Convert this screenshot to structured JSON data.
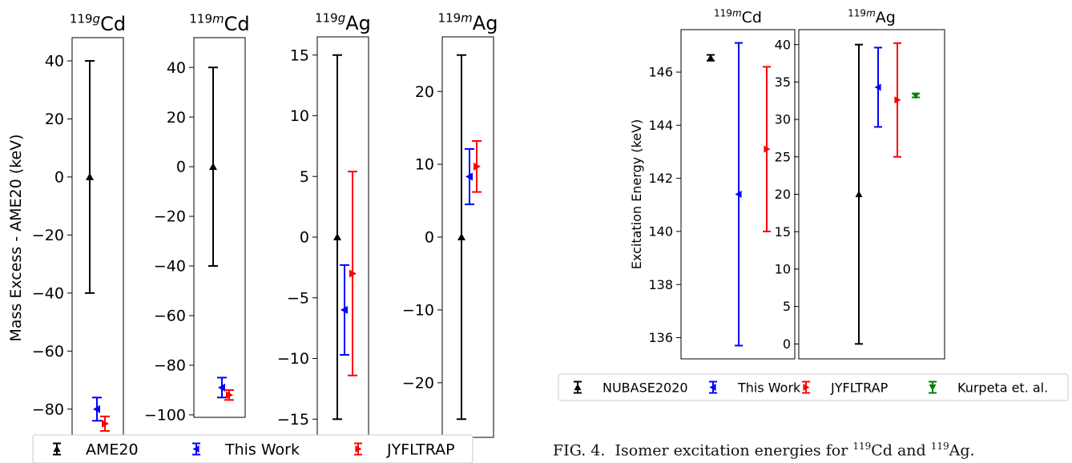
{
  "chart_data": [
    {
      "type": "errorbar",
      "title": "119gCd",
      "title_parts": {
        "mass": "119",
        "state": "g",
        "element": "Cd"
      },
      "ylabel": "Mass Excess - AME20 (keV)",
      "ylim": [
        -90,
        48
      ],
      "yticks": [
        40,
        20,
        0,
        -20,
        -40,
        -60,
        -80
      ],
      "series": [
        {
          "name": "AME20",
          "value": 0,
          "err": 40
        },
        {
          "name": "This Work",
          "value": -80,
          "err": 4
        },
        {
          "name": "JYFLTRAP",
          "value": -85,
          "err": 2.5
        }
      ]
    },
    {
      "type": "errorbar",
      "title": "119mCd",
      "title_parts": {
        "mass": "119",
        "state": "m",
        "element": "Cd"
      },
      "ylim": [
        -101,
        52
      ],
      "yticks": [
        40,
        20,
        0,
        -20,
        -40,
        -60,
        -80,
        -100
      ],
      "series": [
        {
          "name": "AME20",
          "value": 0,
          "err": 40
        },
        {
          "name": "This Work",
          "value": -89,
          "err": 4
        },
        {
          "name": "JYFLTRAP",
          "value": -92,
          "err": 2
        }
      ]
    },
    {
      "type": "errorbar",
      "title": "119gAg",
      "title_parts": {
        "mass": "119",
        "state": "g",
        "element": "Ag"
      },
      "ylim": [
        -16.5,
        16.5
      ],
      "yticks": [
        15,
        10,
        5,
        0,
        -5,
        -10,
        -15
      ],
      "series": [
        {
          "name": "AME20",
          "value": 0,
          "err": 15
        },
        {
          "name": "This Work",
          "value": -6,
          "err": 3.7
        },
        {
          "name": "JYFLTRAP",
          "value": -3,
          "err": 8.4
        }
      ]
    },
    {
      "type": "errorbar",
      "title": "119mAg",
      "title_parts": {
        "mass": "119",
        "state": "m",
        "element": "Ag"
      },
      "ylim": [
        -27.5,
        27.5
      ],
      "yticks": [
        20,
        10,
        0,
        -10,
        -20
      ],
      "series": [
        {
          "name": "AME20",
          "value": 0,
          "err": 25
        },
        {
          "name": "This Work",
          "value": 8.3,
          "err": 3.8
        },
        {
          "name": "JYFLTRAP",
          "value": 9.7,
          "err": 3.5
        }
      ]
    },
    {
      "type": "errorbar",
      "title": "119mCd",
      "title_parts": {
        "mass": "119",
        "state": "m",
        "element": "Cd"
      },
      "ylabel": "Excitation Energy (keV)",
      "ylim": [
        135.2,
        147.6
      ],
      "yticks": [
        146,
        144,
        142,
        140,
        138,
        136
      ],
      "series": [
        {
          "name": "NUBASE2020",
          "value": 146.54,
          "err": 0.11
        },
        {
          "name": "This Work",
          "value": 141.4,
          "err": 5.7
        },
        {
          "name": "JYFLTRAP",
          "value": 143.1,
          "err": 3.1
        }
      ]
    },
    {
      "type": "errorbar",
      "title": "119mAg",
      "title_parts": {
        "mass": "119",
        "state": "m",
        "element": "Ag"
      },
      "ylim": [
        -2,
        42
      ],
      "yticks": [
        40,
        35,
        30,
        25,
        20,
        15,
        10,
        5,
        0
      ],
      "series": [
        {
          "name": "NUBASE2020",
          "value": 20,
          "err": 20
        },
        {
          "name": "This Work",
          "value": 34.3,
          "err": 5.3
        },
        {
          "name": "JYFLTRAP",
          "value": 32.6,
          "err": 7.6
        },
        {
          "name": "Kurpeta et. al.",
          "value": 33.2,
          "err": 0.2
        }
      ]
    }
  ],
  "legend_left": [
    "AME20",
    "This Work",
    "JYFLTRAP"
  ],
  "legend_right": [
    "NUBASE2020",
    "This Work",
    "JYFLTRAP",
    "Kurpeta et. al."
  ],
  "caption": {
    "label": "FIG. 4.",
    "text_a": "Isomer excitation energies for ",
    "sup1": "119",
    "el1": "Cd and ",
    "sup2": "119",
    "el2": "Ag."
  },
  "colors": {
    "AME20": "#000000",
    "NUBASE2020": "#000000",
    "This Work": "#0000ff",
    "JYFLTRAP": "#ff0000",
    "Kurpeta et. al.": "#008000"
  }
}
